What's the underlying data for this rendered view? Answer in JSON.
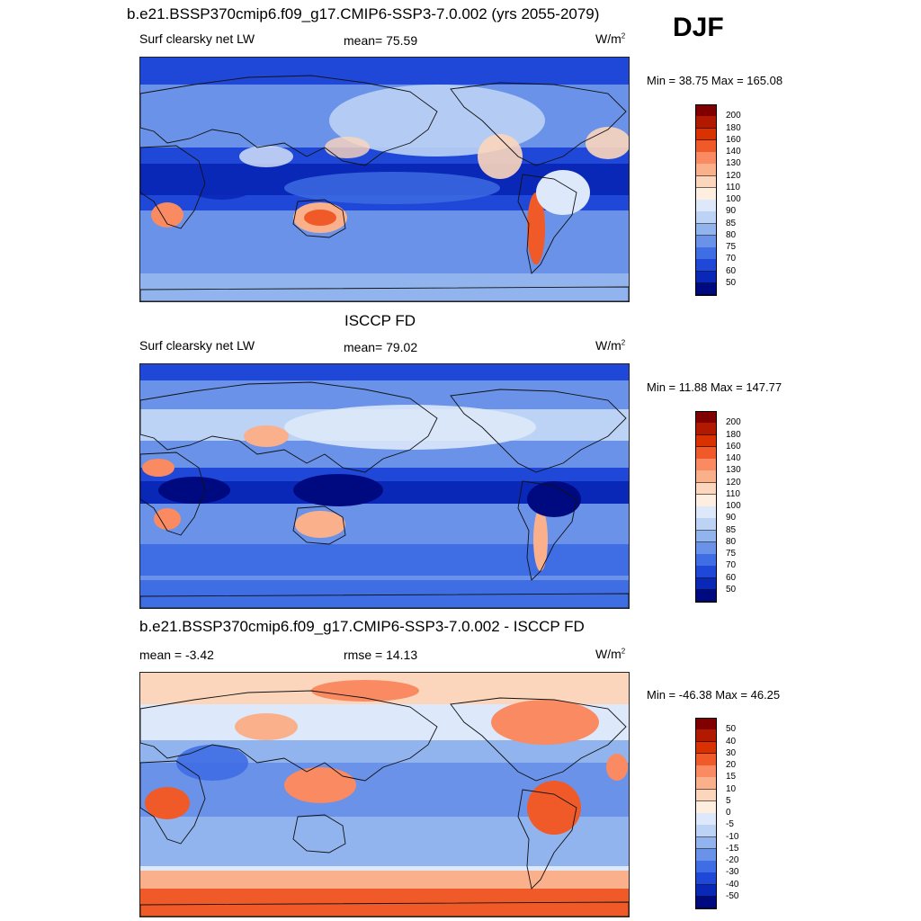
{
  "season": "DJF",
  "panels": [
    {
      "title": "b.e21.BSSP370cmip6.f09_g17.CMIP6-SSP3-7.0.002 (yrs 2055-2079)",
      "left_label": "Surf clearsky net LW",
      "center_label": "mean=  75.59",
      "units": "W/m",
      "units_sup": "2",
      "minmax": "Min =  38.75 Max = 165.08",
      "colorbar_levels": [
        "200",
        "180",
        "160",
        "140",
        "130",
        "120",
        "110",
        "100",
        "90",
        "85",
        "80",
        "75",
        "70",
        "60",
        "50"
      ]
    },
    {
      "title": "ISCCP FD",
      "left_label": "Surf clearsky net LW",
      "center_label": "mean=  79.02",
      "units": "W/m",
      "units_sup": "2",
      "minmax": "Min =  11.88 Max = 147.77",
      "colorbar_levels": [
        "200",
        "180",
        "160",
        "140",
        "130",
        "120",
        "110",
        "100",
        "90",
        "85",
        "80",
        "75",
        "70",
        "60",
        "50"
      ]
    },
    {
      "title": "b.e21.BSSP370cmip6.f09_g17.CMIP6-SSP3-7.0.002 - ISCCP FD",
      "left_label": "mean =  -3.42",
      "center_label": "rmse =  14.13",
      "units": "W/m",
      "units_sup": "2",
      "minmax": "Min = -46.38 Max =  46.25",
      "colorbar_levels": [
        "50",
        "40",
        "30",
        "20",
        "15",
        "10",
        "5",
        "0",
        "-5",
        "-10",
        "-15",
        "-20",
        "-30",
        "-40",
        "-50"
      ]
    }
  ],
  "colors": {
    "palette": [
      "#800000",
      "#b11a00",
      "#d93200",
      "#f05a28",
      "#f98a62",
      "#fbb08c",
      "#fcd6bc",
      "#fdeee0",
      "#dde9fa",
      "#bcd3f5",
      "#92b4ee",
      "#6a92e8",
      "#3f6ee4",
      "#1f48d8",
      "#0a28b8",
      "#000a80"
    ]
  },
  "chart_data": [
    {
      "type": "heatmap",
      "title": "b.e21.BSSP370cmip6.f09_g17.CMIP6-SSP3-7.0.002 (yrs 2055-2079)",
      "field": "Surf clearsky net LW",
      "units": "W/m2",
      "mean": 75.59,
      "min": 38.75,
      "max": 165.08,
      "contour_levels": [
        50,
        60,
        70,
        75,
        80,
        85,
        90,
        100,
        110,
        120,
        130,
        140,
        160,
        180,
        200
      ]
    },
    {
      "type": "heatmap",
      "title": "ISCCP FD",
      "field": "Surf clearsky net LW",
      "units": "W/m2",
      "mean": 79.02,
      "min": 11.88,
      "max": 147.77,
      "contour_levels": [
        50,
        60,
        70,
        75,
        80,
        85,
        90,
        100,
        110,
        120,
        130,
        140,
        160,
        180,
        200
      ]
    },
    {
      "type": "heatmap",
      "title": "b.e21.BSSP370cmip6.f09_g17.CMIP6-SSP3-7.0.002 - ISCCP FD",
      "units": "W/m2",
      "mean": -3.42,
      "rmse": 14.13,
      "min": -46.38,
      "max": 46.25,
      "contour_levels": [
        -50,
        -40,
        -30,
        -20,
        -15,
        -10,
        -5,
        0,
        5,
        10,
        15,
        20,
        30,
        40,
        50
      ]
    }
  ]
}
